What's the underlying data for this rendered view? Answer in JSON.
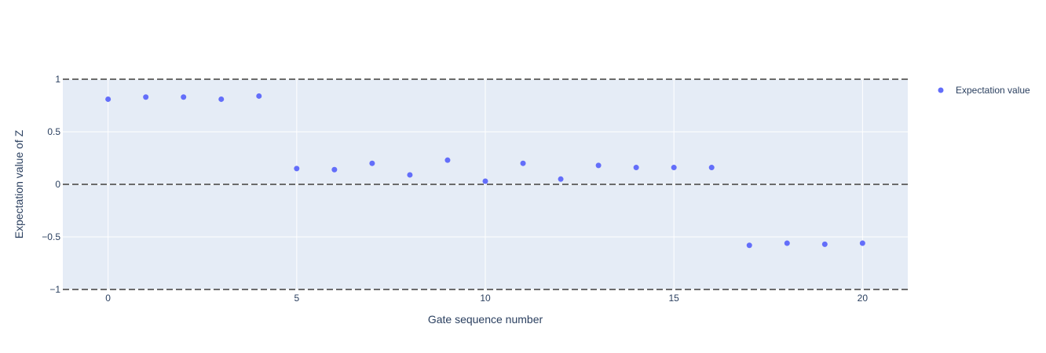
{
  "chart_data": {
    "type": "scatter",
    "title": "",
    "xlabel": "Gate sequence number",
    "ylabel": "Expectation value of Z",
    "xlim": [
      -1.2,
      21.2
    ],
    "ylim": [
      -1,
      1
    ],
    "x_ticks": [
      0,
      5,
      10,
      15,
      20
    ],
    "y_ticks": [
      -1,
      -0.5,
      0,
      0.5,
      1
    ],
    "y_tick_labels": [
      "−1",
      "−0.5",
      "0",
      "0.5",
      "1"
    ],
    "reference_lines": [
      1,
      0,
      -1
    ],
    "grid": true,
    "legend_position": "top-right",
    "series": [
      {
        "name": "Expectation value",
        "color": "#636efa",
        "x": [
          0,
          1,
          2,
          3,
          4,
          5,
          6,
          7,
          8,
          9,
          10,
          11,
          12,
          13,
          14,
          15,
          16,
          17,
          18,
          19,
          20
        ],
        "y": [
          0.81,
          0.83,
          0.83,
          0.81,
          0.84,
          0.15,
          0.14,
          0.2,
          0.09,
          0.23,
          0.03,
          0.2,
          0.05,
          0.18,
          0.16,
          0.16,
          0.16,
          -0.58,
          -0.56,
          -0.57,
          -0.56
        ]
      }
    ]
  },
  "colors": {
    "plot_background": "#e5ecf6",
    "grid": "#ffffff",
    "reference_line": "#6b6b6b",
    "text": "#2a3f5f"
  }
}
